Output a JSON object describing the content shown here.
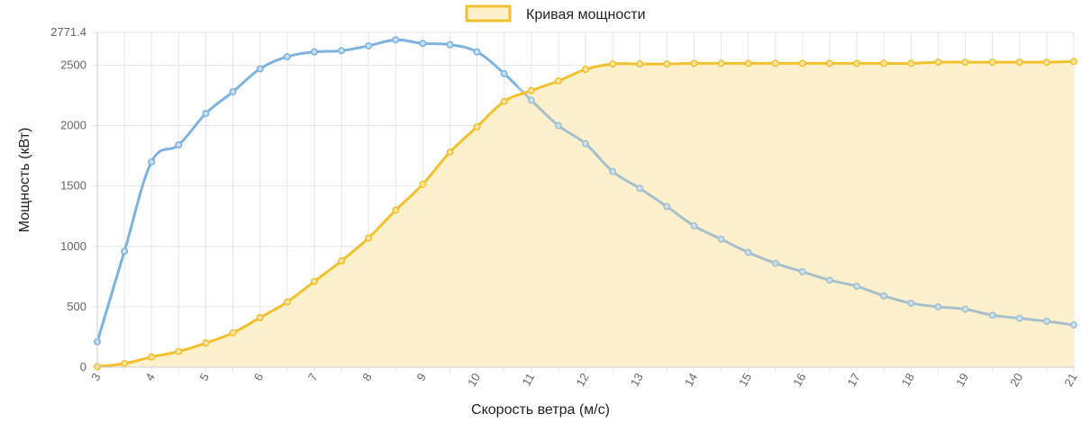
{
  "chart_data": {
    "type": "line",
    "legend": {
      "placement": "top-center",
      "label": "Кривая мощности"
    },
    "xlabel": "Скорость ветра (м/с)",
    "ylabel": "Мощность (кВт)",
    "xlim": [
      3,
      21
    ],
    "ylim": [
      0,
      2771.4
    ],
    "x_ticks": [
      "3",
      "4",
      "5",
      "6",
      "7",
      "8",
      "9",
      "10",
      "11",
      "12",
      "13",
      "14",
      "15",
      "16",
      "17",
      "18",
      "19",
      "20",
      "21"
    ],
    "y_ticks": [
      "0",
      "500",
      "1000",
      "1500",
      "2000",
      "2500",
      "2771.4"
    ],
    "grid": true,
    "x": [
      3,
      3.5,
      4,
      4.5,
      5,
      5.5,
      6,
      6.5,
      7,
      7.5,
      8,
      8.5,
      9,
      9.5,
      10,
      10.5,
      11,
      11.5,
      12,
      12.5,
      13,
      13.5,
      14,
      14.5,
      15,
      15.5,
      16,
      16.5,
      17,
      17.5,
      18,
      18.5,
      19,
      19.5,
      20,
      20.5,
      21
    ],
    "series": [
      {
        "name": "Кривая мощности",
        "color": "#f2c12e",
        "fill": "#fdf0cd",
        "values": [
          5,
          30,
          85,
          130,
          200,
          285,
          410,
          540,
          710,
          880,
          1070,
          1300,
          1515,
          1780,
          1990,
          2200,
          2290,
          2370,
          2465,
          2510,
          2510,
          2510,
          2515,
          2515,
          2515,
          2515,
          2515,
          2515,
          2515,
          2515,
          2515,
          2525,
          2525,
          2525,
          2525,
          2525,
          2530
        ]
      },
      {
        "color": "#7db3e0",
        "color_after_crossing": "#a7c1cc",
        "values": [
          210,
          960,
          1700,
          1840,
          2100,
          2280,
          2470,
          2570,
          2610,
          2620,
          2660,
          2710,
          2680,
          2670,
          2610,
          2430,
          2210,
          2000,
          1850,
          1620,
          1480,
          1330,
          1170,
          1060,
          950,
          860,
          790,
          720,
          670,
          590,
          530,
          500,
          480,
          430,
          405,
          380,
          350
        ]
      }
    ]
  }
}
